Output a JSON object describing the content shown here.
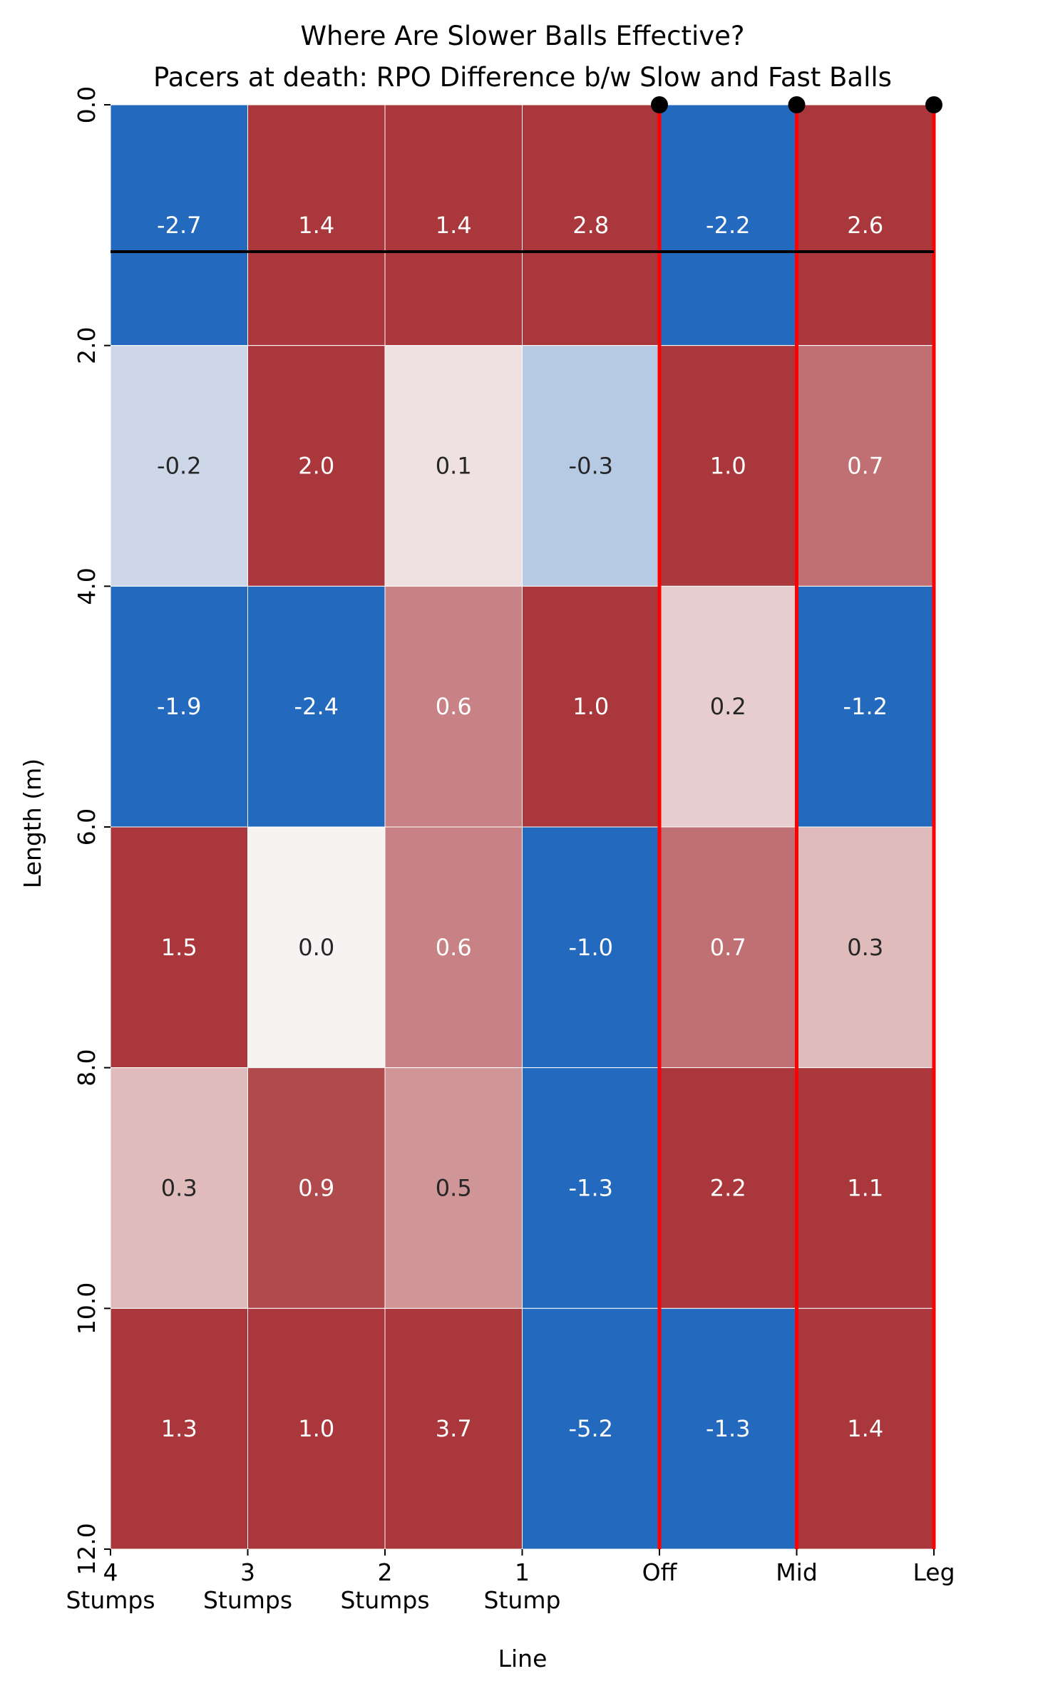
{
  "chart_data": {
    "type": "heatmap",
    "title": "Where Are Slower Balls Effective?",
    "subtitle": "Pacers at death: RPO Difference b/w Slow and Fast Balls",
    "xlabel": "Line",
    "ylabel": "Length (m)",
    "x_categories": [
      "4\nStumps",
      "3\nStumps",
      "2\nStumps",
      "1\nStump",
      "Off",
      "Mid",
      "Leg"
    ],
    "x_ticks": [
      {
        "value": 0,
        "lines": [
          "4",
          "Stumps"
        ]
      },
      {
        "value": 1,
        "lines": [
          "3",
          "Stumps"
        ]
      },
      {
        "value": 2,
        "lines": [
          "2",
          "Stumps"
        ]
      },
      {
        "value": 3,
        "lines": [
          "1",
          "Stump"
        ]
      },
      {
        "value": 4,
        "lines": [
          "Off"
        ]
      },
      {
        "value": 5,
        "lines": [
          "Mid"
        ]
      },
      {
        "value": 6,
        "lines": [
          "Leg"
        ]
      }
    ],
    "y_ticks": [
      "0.0",
      "2.0",
      "4.0",
      "6.0",
      "8.0",
      "10.0",
      "12.0"
    ],
    "xlim": [
      0,
      6
    ],
    "ylim": [
      0,
      12
    ],
    "y_bin_edges": [
      0,
      2,
      4,
      6,
      8,
      10,
      12
    ],
    "values": [
      [
        -2.7,
        1.4,
        1.4,
        2.8,
        -2.2,
        2.6
      ],
      [
        -0.2,
        2.0,
        0.1,
        -0.3,
        1.0,
        0.7
      ],
      [
        -1.9,
        -2.4,
        0.6,
        1.0,
        0.2,
        -1.2
      ],
      [
        1.5,
        0.0,
        0.6,
        -1.0,
        0.7,
        0.3
      ],
      [
        0.3,
        0.9,
        0.5,
        -1.3,
        2.2,
        1.1
      ],
      [
        1.3,
        1.0,
        3.7,
        -5.2,
        -1.3,
        1.4
      ]
    ],
    "color_scale": {
      "vmin": -1,
      "vmax": 1,
      "negative": "#2369bd",
      "center": "#f7f3f3",
      "positive": "#a9373b"
    },
    "stump_lines": {
      "x_values": [
        4,
        5,
        6
      ],
      "color": "#ff0000"
    },
    "stump_markers": {
      "x_values": [
        4,
        5,
        6
      ],
      "y": 0
    },
    "hline": {
      "y": 1.22,
      "color": "#000000"
    },
    "grid": false,
    "legend": "none"
  }
}
